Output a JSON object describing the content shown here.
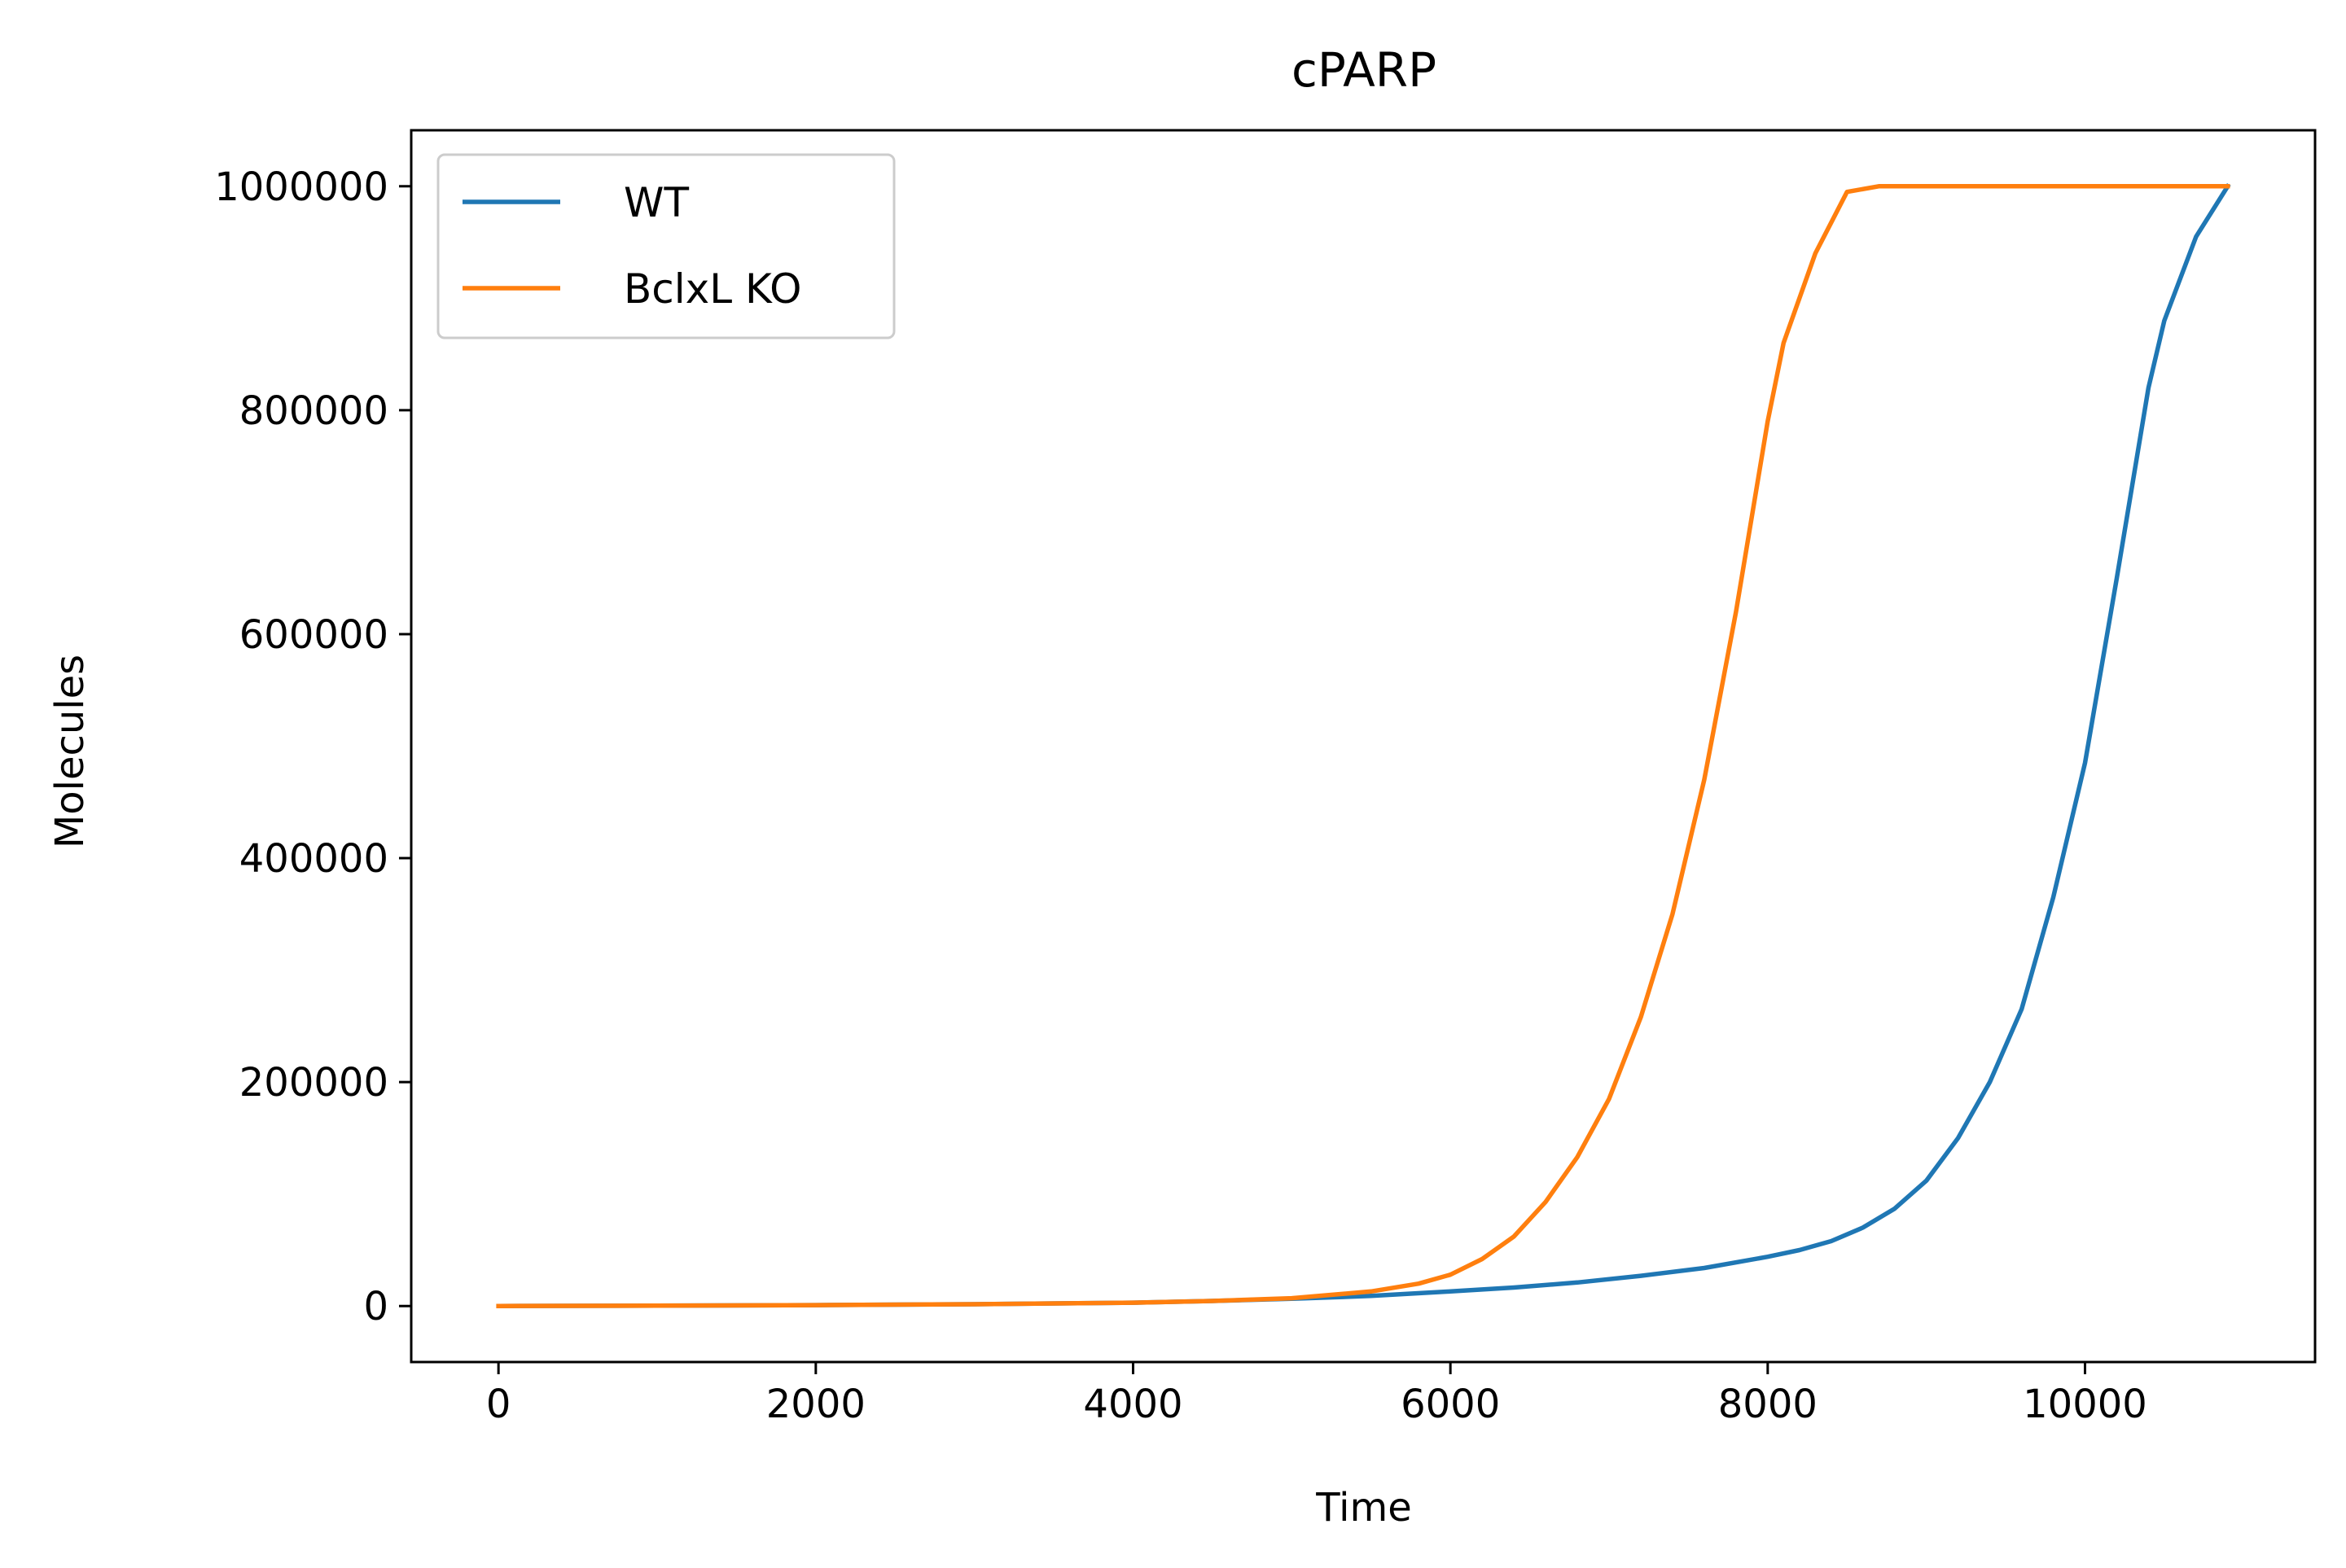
{
  "chart_data": {
    "type": "line",
    "title": "cPARP",
    "xlabel": "Time",
    "ylabel": "Molecules",
    "xlim": [
      -550,
      11450
    ],
    "ylim": [
      -50000,
      1050000
    ],
    "xticks": [
      0,
      2000,
      4000,
      6000,
      8000,
      10000
    ],
    "yticks": [
      0,
      200000,
      400000,
      600000,
      800000,
      1000000
    ],
    "xtick_labels": [
      "0",
      "2000",
      "4000",
      "6000",
      "8000",
      "10000"
    ],
    "ytick_labels": [
      "0",
      "200000",
      "400000",
      "600000",
      "800000",
      "1000000"
    ],
    "grid": false,
    "legend_position": "top-left",
    "series": [
      {
        "name": "WT",
        "color": "#1f77b4",
        "x": [
          0,
          1000,
          2000,
          3000,
          4000,
          4500,
          5000,
          5500,
          6000,
          6400,
          6800,
          7200,
          7600,
          8000,
          8200,
          8400,
          8600,
          8800,
          9000,
          9200,
          9400,
          9600,
          9800,
          10000,
          10200,
          10400,
          10500,
          10700,
          10900
        ],
        "y": [
          0,
          300,
          800,
          1600,
          3000,
          4500,
          6500,
          9000,
          13000,
          16500,
          21000,
          27000,
          34000,
          44000,
          50000,
          58000,
          70000,
          87000,
          112000,
          150000,
          200000,
          265000,
          365000,
          485000,
          650000,
          820000,
          880000,
          955000,
          1000000
        ]
      },
      {
        "name": "BclxL KO",
        "color": "#ff7f0e",
        "x": [
          0,
          1000,
          2000,
          3000,
          4000,
          4500,
          5000,
          5500,
          5800,
          6000,
          6200,
          6400,
          6600,
          6800,
          7000,
          7200,
          7400,
          7600,
          7800,
          8000,
          8100,
          8300,
          8500,
          8700,
          9000,
          9500,
          10000,
          10500,
          10900
        ],
        "y": [
          0,
          300,
          800,
          1600,
          3000,
          4500,
          7000,
          13000,
          20000,
          28000,
          42000,
          62000,
          93000,
          133000,
          185000,
          258000,
          350000,
          470000,
          620000,
          790000,
          860000,
          940000,
          995000,
          1000000,
          1000000,
          1000000,
          1000000,
          1000000,
          1000000
        ]
      }
    ]
  }
}
